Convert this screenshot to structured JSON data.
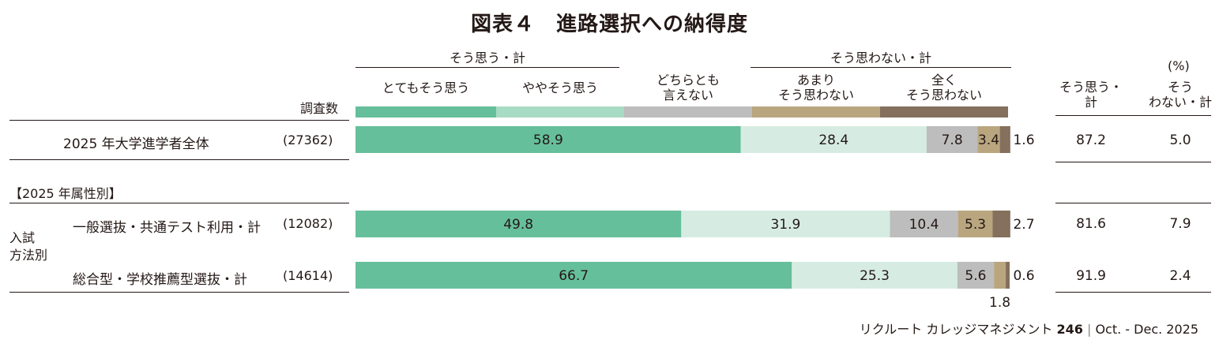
{
  "title": "図表４　進路選択への納得度",
  "groups": {
    "agree_total": "そう思う・計",
    "disagree_total": "そう思わない・計"
  },
  "legend": [
    {
      "label": "とてもそう思う",
      "color": "#66bf9b"
    },
    {
      "label": "ややそう思う",
      "color": "#a8dbc4"
    },
    {
      "label": "どちらとも\n言えない",
      "color": "#bdbdbd"
    },
    {
      "label": "あまり\nそう思わない",
      "color": "#b9a67f"
    },
    {
      "label": "全く\nそう思わない",
      "color": "#84705c"
    }
  ],
  "header": {
    "n_label": "調査数",
    "unit": "(%)",
    "col_agree": "そう思う・\n計",
    "col_disagree": "そう\nわない・計"
  },
  "section_label": "【2025 年属性別】",
  "side_label": "入試\n方法別",
  "rows": [
    {
      "label": "2025 年大学進学者全体",
      "n": "(27362)",
      "agree": "87.2",
      "disagree": "5.0"
    },
    {
      "label": "一般選抜・共通テスト利用・計",
      "n": "(12082)",
      "agree": "81.6",
      "disagree": "7.9"
    },
    {
      "label": "総合型・学校推薦型選抜・計",
      "n": "(14614)",
      "agree": "91.9",
      "disagree": "2.4"
    }
  ],
  "footer": {
    "brand": "リクルート カレッジマネジメント",
    "issue": "246",
    "sep": "|",
    "date": "Oct. - Dec. 2025"
  },
  "chart_data": {
    "type": "bar",
    "orientation": "horizontal",
    "stacked": true,
    "unit": "%",
    "categories": [
      "2025 年大学進学者全体",
      "一般選抜・共通テスト利用・計",
      "総合型・学校推薦型選抜・計"
    ],
    "series": [
      {
        "name": "とてもそう思う",
        "values": [
          58.9,
          49.8,
          66.7
        ]
      },
      {
        "name": "ややそう思う",
        "values": [
          28.4,
          31.9,
          25.3
        ]
      },
      {
        "name": "どちらとも言えない",
        "values": [
          7.8,
          10.4,
          5.6
        ]
      },
      {
        "name": "あまりそう思わない",
        "values": [
          3.4,
          5.3,
          1.8
        ]
      },
      {
        "name": "全くそう思わない",
        "values": [
          1.6,
          2.7,
          0.6
        ]
      }
    ],
    "labels": [
      [
        "58.9",
        "28.4",
        "7.8",
        "3.4",
        "1.6"
      ],
      [
        "49.8",
        "31.9",
        "10.4",
        "5.3",
        "2.7"
      ],
      [
        "66.7",
        "25.3",
        "5.6",
        "1.8",
        "0.6"
      ]
    ],
    "xlim": [
      0,
      100
    ]
  }
}
